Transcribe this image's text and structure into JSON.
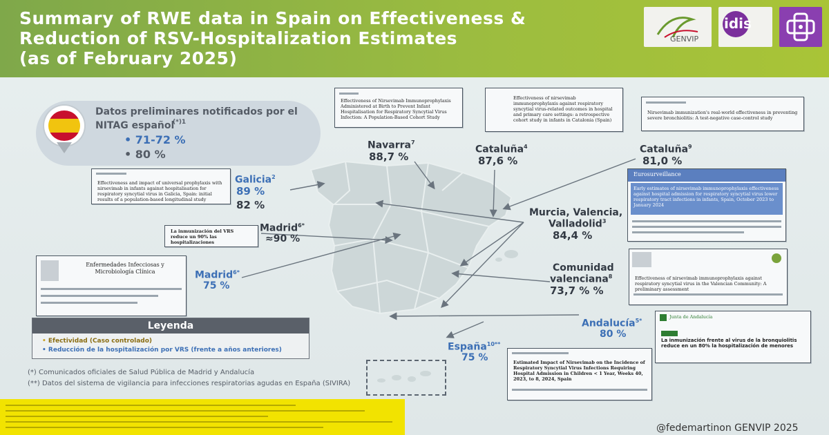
{
  "header": {
    "title_lines": [
      "Summary of RWE data in Spain on Effectiveness &",
      "Reduction of RSV-Hospitalization Estimates",
      "(as of February 2025)"
    ],
    "logos": [
      {
        "name": "genvip-logo",
        "text": "GENVIP"
      },
      {
        "name": "idis-logo",
        "text": "idis"
      },
      {
        "name": "cross-logo",
        "text": ""
      }
    ],
    "brand_colors": {
      "green": "#9dbd3f",
      "purple": "#8a3fb0"
    }
  },
  "nitag": {
    "title_line1": "Datos preliminares notificados por el",
    "title_line2": "NITAG español",
    "title_mark": "(*)1",
    "bullets": [
      "71-72 %",
      "80 %"
    ],
    "flag_icon": "spain-flag-pin-icon"
  },
  "regions": {
    "galicia": {
      "name": "Galicia",
      "ref": "2",
      "values": [
        "89 %",
        "82 %"
      ]
    },
    "navarra": {
      "name": "Navarra",
      "ref": "7",
      "value": "88,7 %"
    },
    "cataluna_a": {
      "name": "Cataluña",
      "ref": "4",
      "value": "87,6 %"
    },
    "cataluna_b": {
      "name": "Cataluña",
      "ref": "9",
      "value": "81,0 %"
    },
    "murcia": {
      "name_line1": "Murcia, Valencia,",
      "name_line2": "Valladolid",
      "ref": "3",
      "value": "84,4 %"
    },
    "madrid_a": {
      "name": "Madrid",
      "ref": "6*",
      "value": "≈90 %"
    },
    "madrid_b": {
      "name": "Madrid",
      "ref": "6*",
      "value": "75 %"
    },
    "comunidad": {
      "name_line1": "Comunidad",
      "name_line2": "valenciana",
      "ref": "8",
      "value": "73,7 % %"
    },
    "andalucia": {
      "name": "Andalucía",
      "ref": "5*",
      "value": "80 %"
    },
    "espana": {
      "name": "España",
      "ref": "10**",
      "value": "75 %"
    }
  },
  "docs": {
    "navarra": "Effectiveness of Nirsevimab Immunoprophylaxis Administered at Birth to Prevent Infant Hospitalisation for Respiratory Syncytial Virus Infection: A Population-Based Cohort Study",
    "cataluna4": "Effectiveness of nirsevimab immunoprophylaxis against respiratory syncytial virus-related outcomes in hospital and primary care settings: a retrospective cohort study in infants in Catalonia (Spain)",
    "cataluna9": "Nirsevimab immunization's real-world effectiveness in preventing severe bronchiolitis: A test-negative case-control study",
    "galicia": "Effectiveness and impact of universal prophylaxis with nirsevimab in infants against hospitalisation for respiratory syncytial virus in Galicia, Spain: initial results of a population-based longitudinal study",
    "madrid_news": "La inmunización del VRS reduce un 90% las hospitalizaciones",
    "madrid_journal": "Enfermedades Infecciosas y Microbiología Clínica",
    "eurosurveillance_header": "Eurosurveillance",
    "eurosurveillance": "Early estimates of nirsevimab immunoprophylaxis effectiveness against hospital admission for respiratory syncytial virus lower respiratory tract infections in infants, Spain, October 2023 to January 2024",
    "comunidad": "Effectiveness of nirsevimab immunoprophylaxis against respiratory syncytial virus in the Valencian Community: A preliminary assessment",
    "andalucia_header": "Junta de Andalucía",
    "andalucia": "La inmunización frente al virus de la bronquiolitis reduce en un 80% la hospitalización de menores",
    "espana": "Estimated Impact of Nirsevimab on the Incidence of Respiratory Syncytial Virus Infections Requiring Hospital Admission in Children < 1 Year, Weeks 40, 2023, to 8, 2024, Spain"
  },
  "legend": {
    "title": "Leyenda",
    "items": [
      "Efectividad (Caso controlado)",
      "Reducción de la hospitalización por VRS (frente a años anteriores)"
    ],
    "item_colors": [
      "#c9a227",
      "#3c6fb5"
    ]
  },
  "footnotes": [
    "(*) Comunicados oficiales de Salud Pública de Madrid y Andalucía",
    "(**) Datos del sistema de vigilancia para infecciones respiratorias agudas en España (SIVIRA)"
  ],
  "footer_handle": "@fedemartinon GENVIP 2025"
}
